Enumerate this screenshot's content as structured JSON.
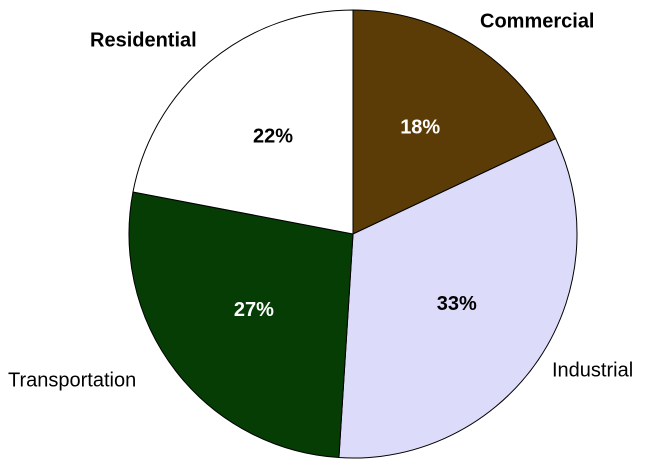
{
  "chart_data": {
    "type": "pie",
    "title": "",
    "slices": [
      {
        "category": "Commercial",
        "value": 18,
        "label": "18%",
        "color": "#5c3c06",
        "label_color": "#ffffff"
      },
      {
        "category": "Industrial",
        "value": 33,
        "label": "33%",
        "color": "#dcdcfa",
        "label_color": "#000000"
      },
      {
        "category": "Transportation",
        "value": 27,
        "label": "27%",
        "color": "#053d05",
        "label_color": "#ffffff"
      },
      {
        "category": "Residential",
        "value": 22,
        "label": "22%",
        "color": "#ffffff",
        "label_color": "#000000"
      }
    ],
    "start_angle": "12 o'clock",
    "direction": "clockwise",
    "legend": "none (category labels placed outside slices)"
  }
}
